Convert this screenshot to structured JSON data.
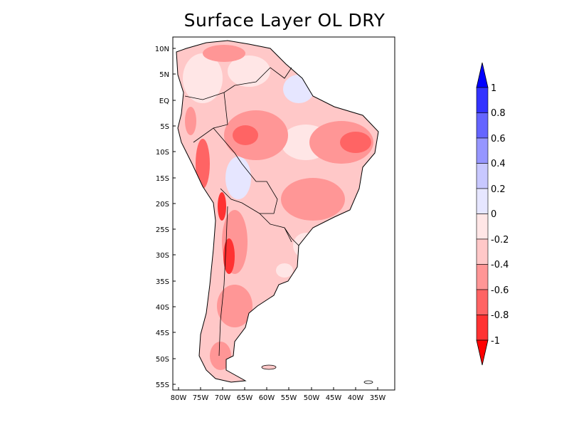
{
  "title": "Surface Layer OL DRY",
  "map": {
    "lat_ticks": [
      "10N",
      "5N",
      "EQ",
      "5S",
      "10S",
      "15S",
      "20S",
      "25S",
      "30S",
      "35S",
      "40S",
      "45S",
      "50S",
      "55S"
    ],
    "lon_ticks": [
      "80W",
      "75W",
      "70W",
      "65W",
      "60W",
      "55W",
      "50W",
      "45W",
      "40W",
      "35W"
    ]
  },
  "colorbar": {
    "labels": [
      "1",
      "0.8",
      "0.6",
      "0.4",
      "0.2",
      "0",
      "-0.2",
      "-0.4",
      "-0.6",
      "-0.8",
      "-1"
    ],
    "colors": [
      "#0000ff",
      "#3232ff",
      "#6464ff",
      "#9696ff",
      "#c8c8ff",
      "#e6e6ff",
      "#ffe6e6",
      "#ffc8c8",
      "#ff9696",
      "#ff6464",
      "#ff3232",
      "#ff0000"
    ]
  }
}
